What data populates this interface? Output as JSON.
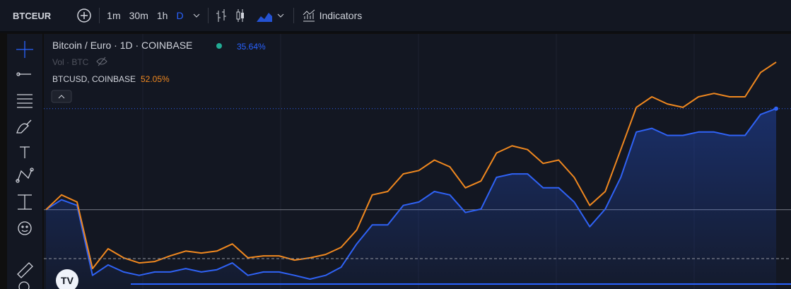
{
  "toolbar": {
    "symbol": "BTCEUR",
    "intervals": [
      "1m",
      "30m",
      "1h",
      "D"
    ],
    "indicators": "Indicators"
  },
  "legend": {
    "volume": "Vol · BTC"
  },
  "chart_data": {
    "type": "line",
    "ylim": [
      -28,
      62
    ],
    "series": [
      {
        "name": "Bitcoin / Euro · 1D · COINBASE",
        "change": "35.64%",
        "color": "#2f62f5",
        "values": [
          0,
          3.5,
          1.5,
          -23.2,
          -19.5,
          -22.0,
          -23.2,
          -22.0,
          -22.0,
          -20.8,
          -22.0,
          -21.2,
          -18.8,
          -23.2,
          -22.0,
          -22.0,
          -23.2,
          -24.5,
          -23.2,
          -20.3,
          -12.1,
          -5.4,
          -5.4,
          1.5,
          2.7,
          6.4,
          5.2,
          -1.0,
          0.2,
          11.4,
          12.6,
          12.6,
          7.7,
          7.7,
          2.7,
          -6.0,
          0.2,
          11.4,
          27.4,
          28.7,
          26.2,
          26.2,
          27.4,
          27.4,
          26.2,
          26.2,
          33.6,
          35.64
        ]
      },
      {
        "name": "BTCUSD, COINBASE",
        "change": "52.05%",
        "color": "#f0881f",
        "values": [
          0,
          5.2,
          2.7,
          -20.8,
          -13.8,
          -17.0,
          -18.8,
          -18.3,
          -16.3,
          -14.6,
          -15.3,
          -14.6,
          -12.1,
          -17.0,
          -16.3,
          -16.3,
          -17.8,
          -17.0,
          -15.8,
          -13.3,
          -7.2,
          5.2,
          6.4,
          12.6,
          13.8,
          17.5,
          15.1,
          7.7,
          10.1,
          20.0,
          22.5,
          21.2,
          16.3,
          17.5,
          11.4,
          1.5,
          6.4,
          21.2,
          36.1,
          39.8,
          37.3,
          36.1,
          39.8,
          41.0,
          39.8,
          39.8,
          48.4,
          52.05
        ]
      }
    ]
  }
}
